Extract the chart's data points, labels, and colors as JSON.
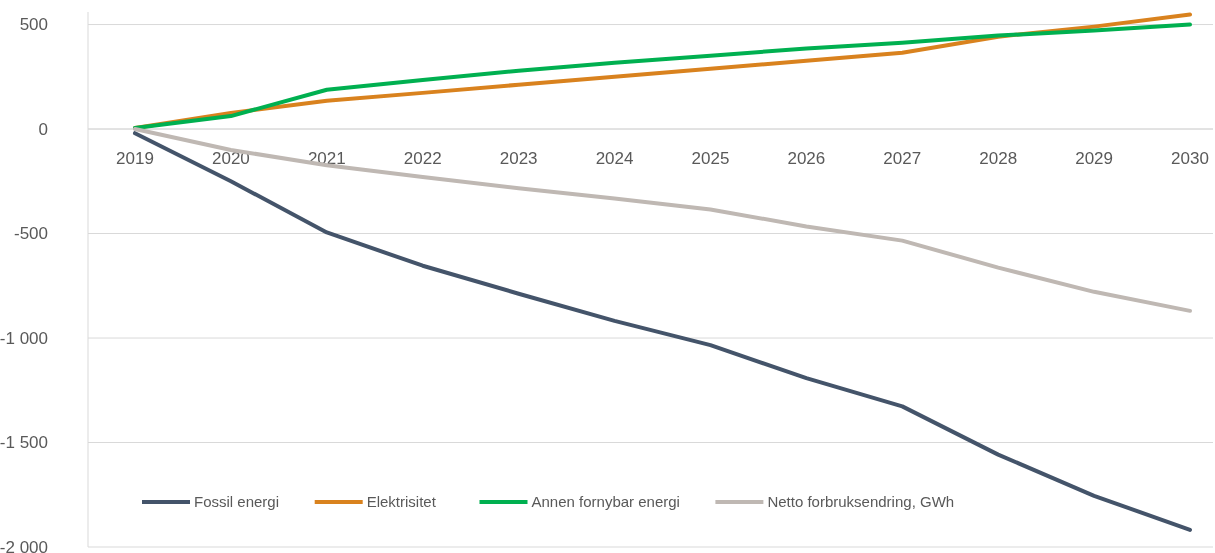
{
  "chart_data": {
    "type": "line",
    "categories": [
      "2019",
      "2020",
      "2021",
      "2022",
      "2023",
      "2024",
      "2025",
      "2026",
      "2027",
      "2028",
      "2029",
      "2030"
    ],
    "series": [
      {
        "name": "Fossil energi",
        "color": "#44546a",
        "values": [
          -20,
          -250,
          -495,
          -654,
          -788,
          -918,
          -1034,
          -1192,
          -1327,
          -1558,
          -1755,
          -1918
        ]
      },
      {
        "name": "Elektrisitet",
        "color": "#d9821e",
        "values": [
          5,
          77,
          135,
          173,
          212,
          250,
          288,
          327,
          365,
          442,
          490,
          548
        ]
      },
      {
        "name": "Annen fornybar energi",
        "color": "#00b050",
        "values": [
          5,
          62,
          188,
          235,
          279,
          317,
          351,
          385,
          413,
          447,
          471,
          500
        ]
      },
      {
        "name": "Netto forbruksendring, GWh",
        "color": "#bfb8b3",
        "values": [
          0,
          -100,
          -173,
          -230,
          -283,
          -332,
          -385,
          -466,
          -534,
          -663,
          -779,
          -870
        ]
      }
    ],
    "ylim": [
      -2000,
      560
    ],
    "yticks": [
      {
        "value": -2000,
        "label": "-2 000"
      },
      {
        "value": -1500,
        "label": "-1 500"
      },
      {
        "value": -1000,
        "label": "-1 000"
      },
      -500,
      0,
      500
    ],
    "grid": "y",
    "legend": "bottom",
    "marker": "none",
    "line_style": "solid"
  }
}
